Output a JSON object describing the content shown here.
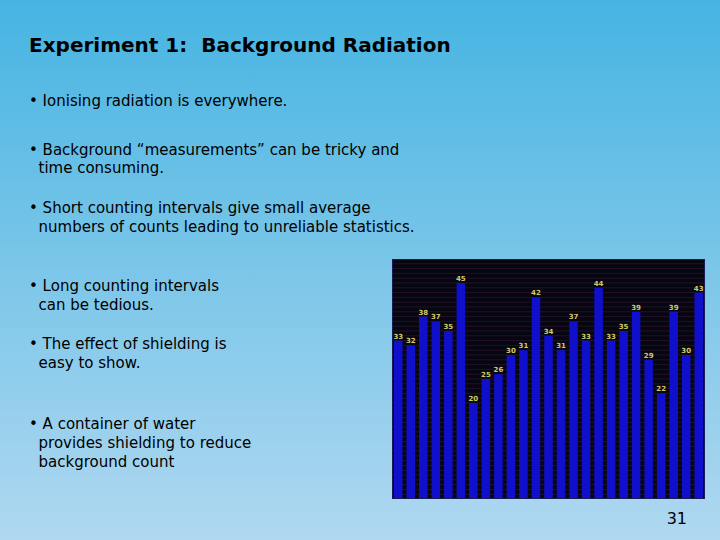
{
  "chart_data": {
    "type": "bar",
    "title": "Experiment 1:  Background Radiation",
    "annotations": [
      "• Ionising radiation is everywhere.",
      "• Background “measurements” can be tricky and\n  time consuming.",
      "• Short counting intervals give small average\n  numbers of counts leading to unreliable statistics.",
      "• Long counting intervals\n  can be tedious.",
      "• The effect of shielding is\n  easy to show.",
      "• A container of water\n  provides shielding to reduce\n  background count",
      "31"
    ],
    "categories": [
      null,
      null,
      null,
      null,
      null,
      null,
      null,
      null,
      null,
      null,
      null,
      null,
      null,
      null,
      null,
      null,
      null,
      null,
      null,
      null,
      null,
      null,
      null,
      null,
      null
    ],
    "values": [
      33,
      32,
      38,
      37,
      35,
      45,
      20,
      25,
      26,
      30,
      31,
      42,
      34,
      31,
      37,
      33,
      44,
      33,
      35,
      39,
      29,
      22,
      39,
      30,
      43
    ],
    "color": "#1010cc",
    "ylim": [
      0,
      50
    ],
    "yticks": [
      0,
      1,
      2,
      3,
      4,
      5,
      6,
      7,
      8,
      9,
      10,
      11,
      12,
      13,
      14,
      15,
      16,
      17,
      18,
      19,
      20,
      21,
      22,
      23,
      24,
      25,
      26,
      27,
      28,
      29,
      30,
      31,
      32,
      33,
      34,
      35,
      36,
      37,
      38,
      39,
      40,
      41,
      42,
      43,
      44,
      45,
      46,
      47,
      48,
      49,
      50
    ],
    "grid": true,
    "data_labels": true,
    "tick_labels": false
  }
}
